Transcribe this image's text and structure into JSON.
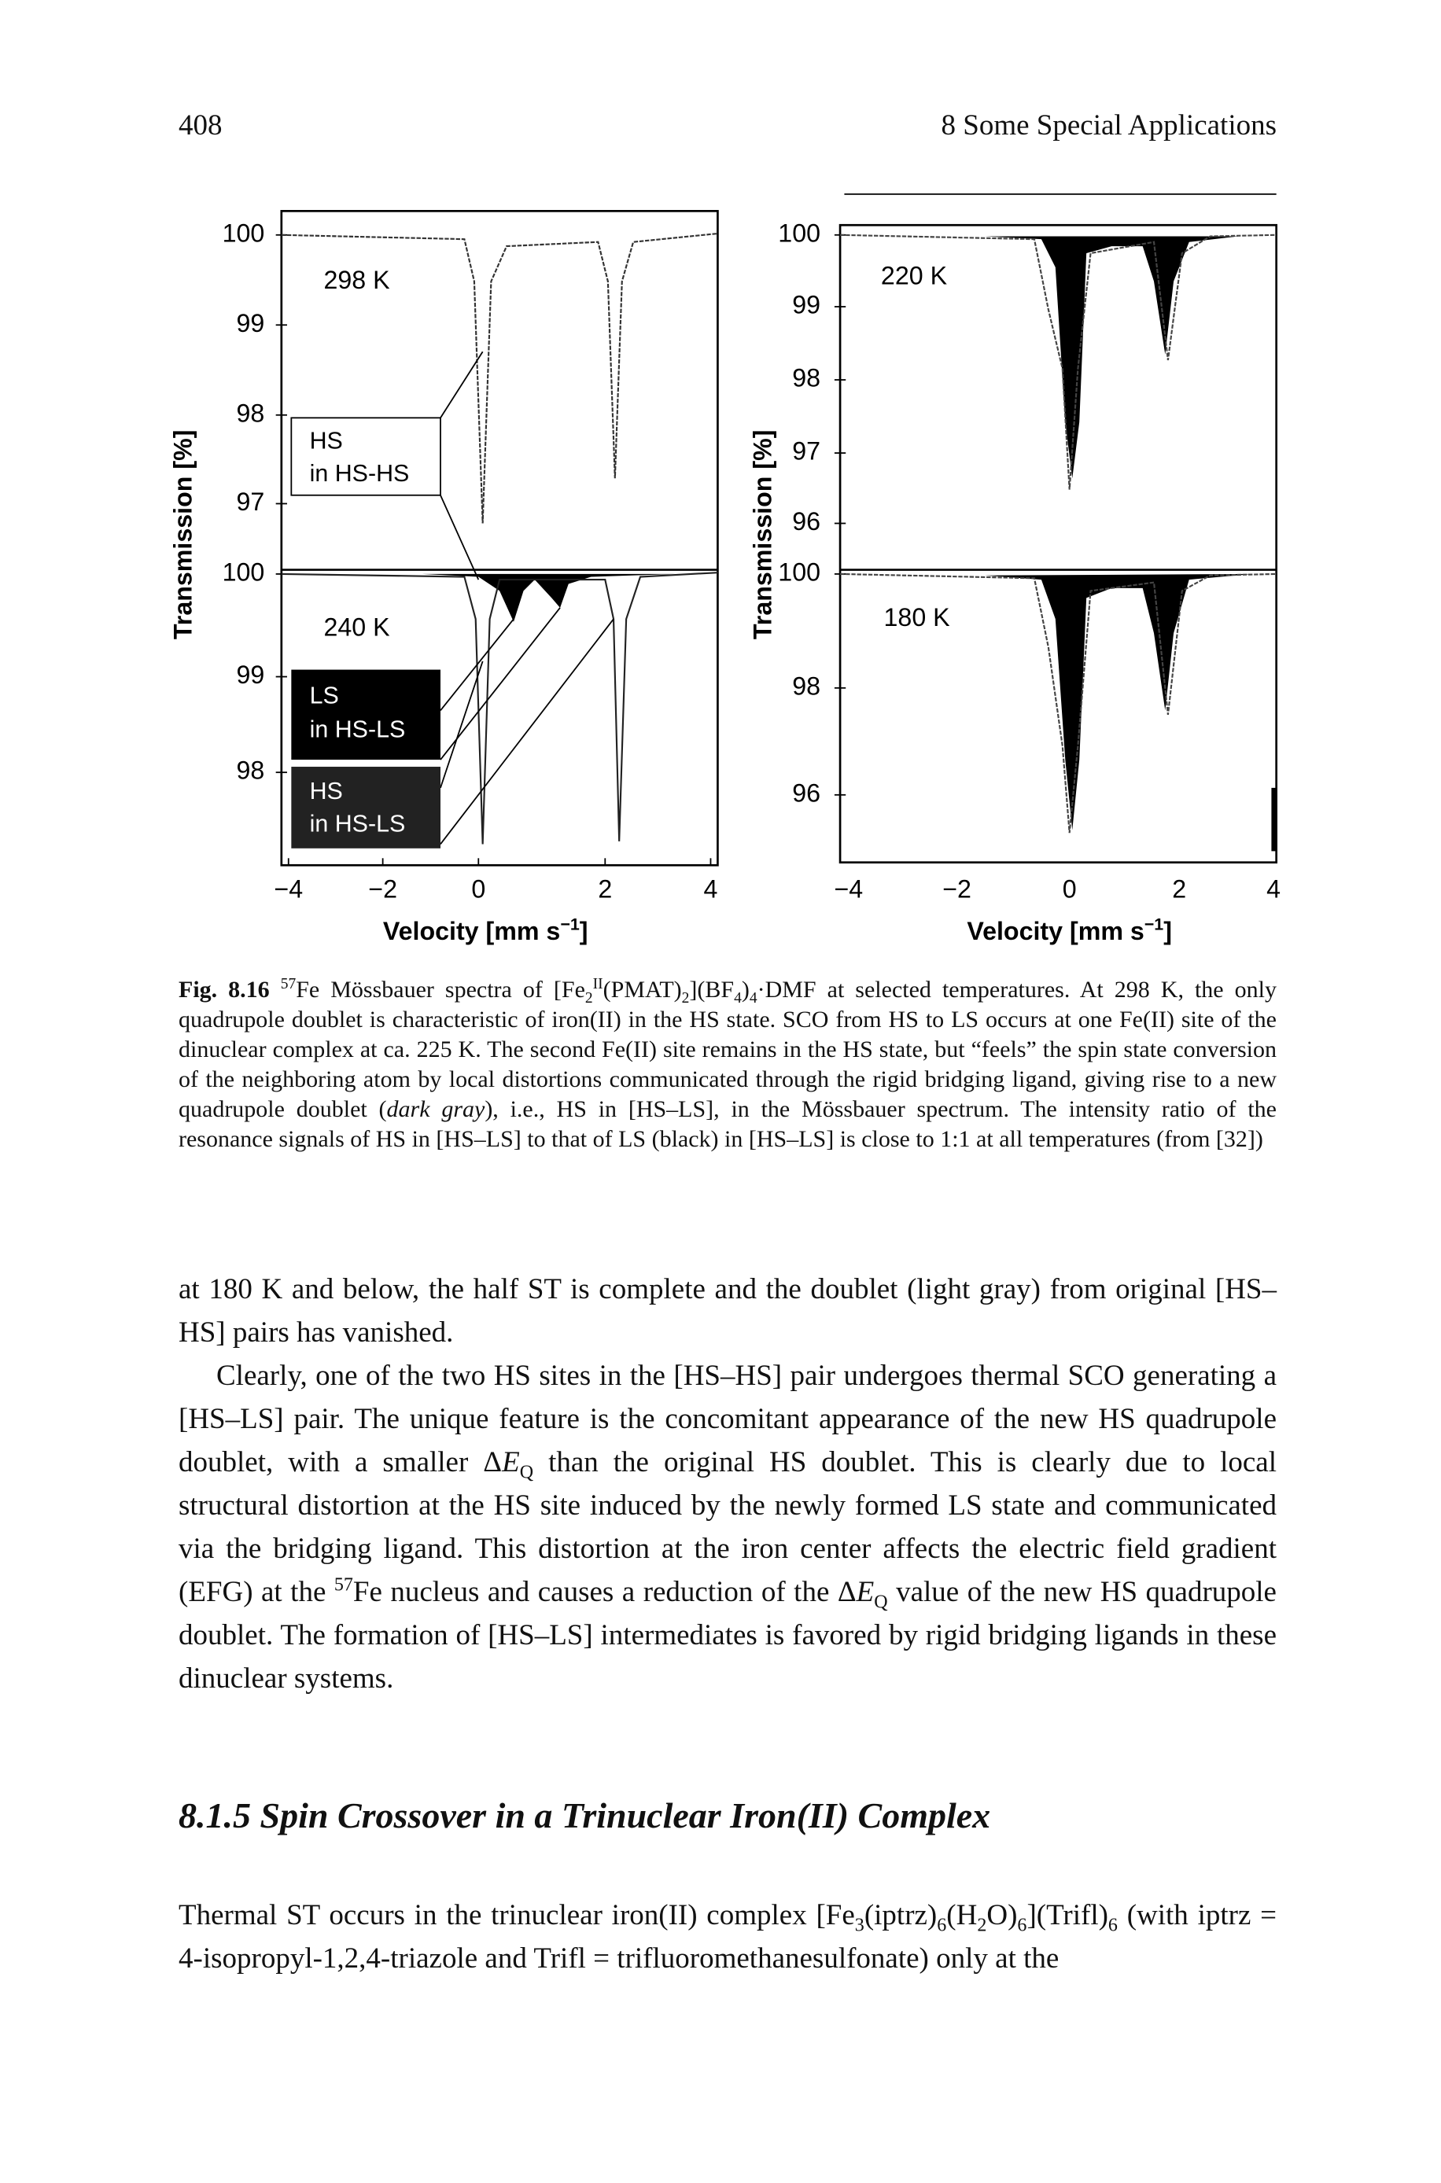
{
  "header": {
    "page_number": "408",
    "running_title": "8 Some Special Applications"
  },
  "figure": {
    "left": {
      "y_label": "Transmission [%]",
      "x_label": [
        "Velocity [mm s",
        "−1",
        "]"
      ],
      "x_ticks": [
        "−4",
        "−2",
        "0",
        "2",
        "4"
      ],
      "top": {
        "temperature": "298 K",
        "y_ticks": [
          "100",
          "99",
          "98",
          "97"
        ]
      },
      "bottom": {
        "temperature": "240 K",
        "y_ticks": [
          "100",
          "99",
          "98"
        ]
      },
      "legend": [
        {
          "line1": "HS",
          "line2": "in HS-HS"
        },
        {
          "line1": "LS",
          "line2": "in HS-LS"
        },
        {
          "line1": "HS",
          "line2": "in HS-LS"
        }
      ]
    },
    "right": {
      "y_label": "Transmission [%]",
      "x_label": [
        "Velocity [mm s",
        "−1",
        "]"
      ],
      "x_ticks": [
        "−4",
        "−2",
        "0",
        "2",
        "4"
      ],
      "top": {
        "temperature": "220 K",
        "y_ticks": [
          "100",
          "99",
          "98",
          "97",
          "96"
        ]
      },
      "bottom": {
        "temperature": "180 K",
        "y_ticks": [
          "100",
          "98",
          "96"
        ]
      }
    }
  },
  "caption": {
    "label": "Fig. 8.16",
    "parts": [
      "57",
      "Fe Mössbauer spectra of [Fe",
      "2",
      "II",
      "(PMAT)",
      "2",
      "](BF",
      "4",
      ")",
      "4",
      "·DMF at selected temperatures. At 298 K, the only quadrupole doublet is characteristic of iron(II) in the HS state. SCO from HS to LS occurs at one Fe(II) site of the dinuclear complex at ca. 225 K. The second Fe(II) site remains in the HS state, but “feels” the spin state conversion of the neighboring atom by local distortions communicated through the rigid bridging ligand, giving rise to a new quadrupole doublet (",
      "dark gray",
      "), i.e., HS in [HS–LS], in the Mössbauer spectrum. The intensity ratio of the resonance signals of HS in [HS–LS] to that of LS (black) in [HS–LS] is close to 1:1 at all temperatures (from [32])"
    ]
  },
  "body": {
    "paragraph_1": "at 180 K and below, the half ST is complete and the doublet (light gray) from original [HS–HS] pairs has vanished.",
    "paragraph_2": [
      "Clearly, one of the two HS sites in the [HS–HS] pair undergoes thermal SCO generating a [HS–LS] pair. The unique feature is the concomitant appearance of the new HS quadrupole doublet, with a smaller Δ",
      "E",
      "Q",
      " than the original HS doublet. This is clearly due to local structural distortion at the HS site induced by the newly formed LS state and communicated via the bridging ligand. This distortion at the iron center affects the electric field gradient (EFG) at the ",
      "57",
      "Fe nucleus and causes a reduction of the Δ",
      "E",
      "Q",
      " value of the new HS quadrupole doublet. The formation of [HS–LS] intermediates is favored by rigid bridging ligands in these dinuclear systems."
    ],
    "section_heading": "8.1.5 Spin Crossover in a Trinuclear Iron(II) Complex",
    "paragraph_3": [
      "Thermal ST occurs in the trinuclear iron(II) complex [Fe",
      "3",
      "(iptrz)",
      "6",
      "(H",
      "2",
      "O)",
      "6",
      "](Trifl)",
      "6",
      " (with iptrz = 4-isopropyl-1,2,4-triazole and Trifl = trifluoromethanesulfonate) only at the"
    ]
  }
}
